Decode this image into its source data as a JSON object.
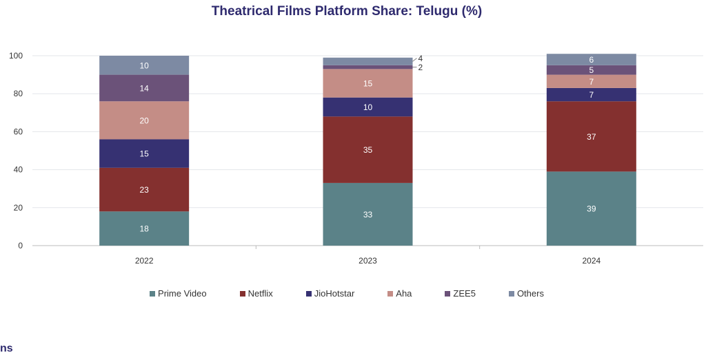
{
  "chart_data": {
    "type": "bar",
    "stacked": true,
    "title": "Theatrical Films Platform Share: Telugu (%)",
    "xlabel": "",
    "ylabel": "",
    "ylim": [
      0,
      100
    ],
    "yticks": [
      0,
      20,
      40,
      60,
      80,
      100
    ],
    "grid": true,
    "legend_position": "bottom",
    "categories": [
      "2022",
      "2023",
      "2024"
    ],
    "series": [
      {
        "name": "Prime Video",
        "color": "#5b8288",
        "values": [
          18,
          33,
          39
        ]
      },
      {
        "name": "Netflix",
        "color": "#84302f",
        "values": [
          23,
          35,
          37
        ]
      },
      {
        "name": "JioHotstar",
        "color": "#363172",
        "values": [
          15,
          10,
          7
        ]
      },
      {
        "name": "Aha",
        "color": "#c48d86",
        "values": [
          20,
          15,
          7
        ]
      },
      {
        "name": "ZEE5",
        "color": "#6b5279",
        "values": [
          14,
          2,
          5
        ]
      },
      {
        "name": "Others",
        "color": "#7d8aa3",
        "values": [
          10,
          4,
          6
        ]
      }
    ]
  },
  "footer_fragment": "ns"
}
